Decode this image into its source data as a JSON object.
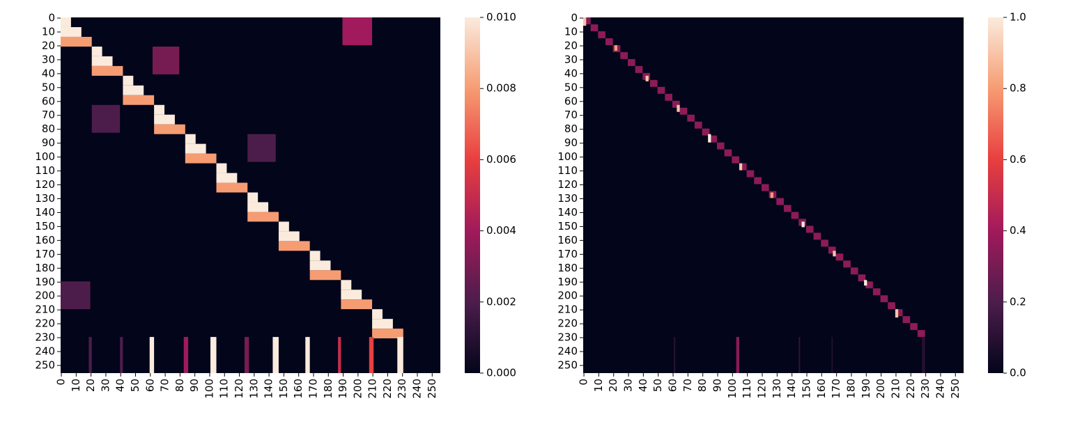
{
  "chart_data": [
    {
      "type": "heatmap",
      "y_inverted": true,
      "xlim": [
        0,
        256
      ],
      "ylim": [
        0,
        256
      ],
      "xticks": [
        0,
        10,
        20,
        30,
        40,
        50,
        60,
        70,
        80,
        90,
        100,
        110,
        120,
        130,
        140,
        150,
        160,
        170,
        180,
        190,
        200,
        210,
        220,
        230,
        240,
        250
      ],
      "yticks": [
        0,
        10,
        20,
        30,
        40,
        50,
        60,
        70,
        80,
        90,
        100,
        110,
        120,
        130,
        140,
        150,
        160,
        170,
        180,
        190,
        200,
        210,
        220,
        230,
        240,
        250
      ],
      "zlim": [
        0,
        0.01
      ],
      "zticks": [
        {
          "value": 0,
          "label": "0.000"
        },
        {
          "value": 0.002,
          "label": "0.002"
        },
        {
          "value": 0.004,
          "label": "0.004"
        },
        {
          "value": 0.006,
          "label": "0.006"
        },
        {
          "value": 0.008,
          "label": "0.008"
        },
        {
          "value": 0.01,
          "label": "0.010"
        }
      ],
      "cells": [
        [
          0,
          20,
          190,
          210,
          0.004
        ],
        [
          21,
          41,
          62,
          80,
          0.003
        ],
        [
          63,
          83,
          21,
          40,
          0.002
        ],
        [
          84,
          104,
          126,
          145,
          0.002
        ],
        [
          190,
          210,
          0,
          20,
          0.002
        ],
        [
          0,
          7,
          0,
          7,
          0.01
        ],
        [
          7,
          14,
          0,
          14,
          0.01
        ],
        [
          14,
          21,
          0,
          21,
          0.008
        ],
        [
          21,
          28,
          21,
          28,
          0.01
        ],
        [
          28,
          35,
          21,
          35,
          0.01
        ],
        [
          35,
          42,
          21,
          42,
          0.008
        ],
        [
          42,
          49,
          42,
          49,
          0.01
        ],
        [
          49,
          56,
          42,
          56,
          0.01
        ],
        [
          56,
          63,
          42,
          63,
          0.008
        ],
        [
          63,
          70,
          63,
          70,
          0.01
        ],
        [
          70,
          77,
          63,
          77,
          0.01
        ],
        [
          77,
          84,
          63,
          84,
          0.008
        ],
        [
          84,
          91,
          84,
          91,
          0.01
        ],
        [
          91,
          98,
          84,
          98,
          0.01
        ],
        [
          98,
          105,
          84,
          105,
          0.008
        ],
        [
          105,
          112,
          105,
          112,
          0.01
        ],
        [
          112,
          119,
          105,
          119,
          0.01
        ],
        [
          119,
          126,
          105,
          126,
          0.008
        ],
        [
          126,
          133,
          126,
          133,
          0.01
        ],
        [
          133,
          140,
          126,
          140,
          0.01
        ],
        [
          140,
          147,
          126,
          147,
          0.008
        ],
        [
          147,
          154,
          147,
          154,
          0.01
        ],
        [
          154,
          161,
          147,
          161,
          0.01
        ],
        [
          161,
          168,
          147,
          168,
          0.008
        ],
        [
          168,
          175,
          168,
          175,
          0.01
        ],
        [
          175,
          182,
          168,
          182,
          0.01
        ],
        [
          182,
          189,
          168,
          189,
          0.008
        ],
        [
          189,
          196,
          189,
          196,
          0.01
        ],
        [
          196,
          203,
          189,
          203,
          0.01
        ],
        [
          203,
          210,
          189,
          210,
          0.008
        ],
        [
          210,
          217,
          210,
          217,
          0.01
        ],
        [
          217,
          224,
          210,
          224,
          0.01
        ],
        [
          224,
          231,
          210,
          231,
          0.008
        ],
        [
          230,
          256,
          19,
          21,
          0.002
        ],
        [
          230,
          256,
          40,
          42,
          0.002
        ],
        [
          230,
          256,
          60,
          63,
          0.01
        ],
        [
          230,
          256,
          83,
          86,
          0.004
        ],
        [
          230,
          256,
          101,
          105,
          0.01
        ],
        [
          230,
          256,
          124,
          127,
          0.003
        ],
        [
          230,
          256,
          143,
          147,
          0.01
        ],
        [
          230,
          256,
          165,
          168,
          0.01
        ],
        [
          230,
          256,
          187,
          189,
          0.005
        ],
        [
          230,
          256,
          208,
          211,
          0.006
        ],
        [
          230,
          256,
          227,
          231,
          0.01
        ]
      ]
    },
    {
      "type": "heatmap",
      "y_inverted": true,
      "xlim": [
        0,
        256
      ],
      "ylim": [
        0,
        256
      ],
      "xticks": [
        0,
        10,
        20,
        30,
        40,
        50,
        60,
        70,
        80,
        90,
        100,
        110,
        120,
        130,
        140,
        150,
        160,
        170,
        180,
        190,
        200,
        210,
        220,
        230,
        240,
        250
      ],
      "yticks": [
        0,
        10,
        20,
        30,
        40,
        50,
        60,
        70,
        80,
        90,
        100,
        110,
        120,
        130,
        140,
        150,
        160,
        170,
        180,
        190,
        200,
        210,
        220,
        230,
        240,
        250
      ],
      "zlim": [
        0,
        1
      ],
      "zticks": [
        {
          "value": 0,
          "label": "0.0"
        },
        {
          "value": 0.2,
          "label": "0.2"
        },
        {
          "value": 0.4,
          "label": "0.4"
        },
        {
          "value": 0.6,
          "label": "0.6"
        },
        {
          "value": 0.8,
          "label": "0.8"
        },
        {
          "value": 1,
          "label": "1.0"
        }
      ],
      "cells": [
        [
          0,
          5,
          0,
          5,
          0.35
        ],
        [
          5,
          10,
          5,
          10,
          0.35
        ],
        [
          10,
          15,
          10,
          15,
          0.35
        ],
        [
          15,
          20,
          15,
          20,
          0.35
        ],
        [
          20,
          25,
          20,
          25,
          0.35
        ],
        [
          25,
          30,
          25,
          30,
          0.35
        ],
        [
          30,
          35,
          30,
          35,
          0.35
        ],
        [
          35,
          40,
          35,
          40,
          0.35
        ],
        [
          40,
          45,
          40,
          45,
          0.35
        ],
        [
          45,
          50,
          45,
          50,
          0.35
        ],
        [
          50,
          55,
          50,
          55,
          0.35
        ],
        [
          55,
          60,
          55,
          60,
          0.35
        ],
        [
          60,
          65,
          60,
          65,
          0.35
        ],
        [
          65,
          70,
          65,
          70,
          0.35
        ],
        [
          70,
          75,
          70,
          75,
          0.35
        ],
        [
          75,
          80,
          75,
          80,
          0.35
        ],
        [
          80,
          85,
          80,
          85,
          0.35
        ],
        [
          85,
          90,
          85,
          90,
          0.35
        ],
        [
          90,
          95,
          90,
          95,
          0.35
        ],
        [
          95,
          100,
          95,
          100,
          0.35
        ],
        [
          100,
          105,
          100,
          105,
          0.35
        ],
        [
          105,
          110,
          105,
          110,
          0.35
        ],
        [
          110,
          115,
          110,
          115,
          0.35
        ],
        [
          115,
          120,
          115,
          120,
          0.35
        ],
        [
          120,
          125,
          120,
          125,
          0.35
        ],
        [
          125,
          130,
          125,
          130,
          0.35
        ],
        [
          130,
          135,
          130,
          135,
          0.35
        ],
        [
          135,
          140,
          135,
          140,
          0.35
        ],
        [
          140,
          145,
          140,
          145,
          0.35
        ],
        [
          145,
          150,
          145,
          150,
          0.35
        ],
        [
          150,
          155,
          150,
          155,
          0.35
        ],
        [
          155,
          160,
          155,
          160,
          0.35
        ],
        [
          160,
          165,
          160,
          165,
          0.35
        ],
        [
          165,
          170,
          165,
          170,
          0.35
        ],
        [
          170,
          175,
          170,
          175,
          0.35
        ],
        [
          175,
          180,
          175,
          180,
          0.35
        ],
        [
          180,
          185,
          180,
          185,
          0.35
        ],
        [
          185,
          190,
          185,
          190,
          0.35
        ],
        [
          190,
          195,
          190,
          195,
          0.35
        ],
        [
          195,
          200,
          195,
          200,
          0.35
        ],
        [
          200,
          205,
          200,
          205,
          0.35
        ],
        [
          205,
          210,
          205,
          210,
          0.35
        ],
        [
          210,
          215,
          210,
          215,
          0.35
        ],
        [
          215,
          220,
          215,
          220,
          0.35
        ],
        [
          220,
          225,
          220,
          225,
          0.35
        ],
        [
          225,
          230,
          225,
          230,
          0.35
        ],
        [
          0,
          6,
          0,
          2,
          0.9
        ],
        [
          20,
          24,
          21,
          23,
          0.8
        ],
        [
          42,
          46,
          42,
          44,
          0.9
        ],
        [
          63,
          68,
          63,
          65,
          0.9
        ],
        [
          84,
          90,
          84,
          86,
          1.0
        ],
        [
          105,
          110,
          105,
          107,
          0.9
        ],
        [
          126,
          130,
          126,
          128,
          0.8
        ],
        [
          147,
          151,
          147,
          149,
          1.0
        ],
        [
          168,
          172,
          168,
          170,
          0.9
        ],
        [
          189,
          193,
          189,
          191,
          1.0
        ],
        [
          210,
          216,
          210,
          212,
          0.9
        ],
        [
          230,
          256,
          61,
          62,
          0.1
        ],
        [
          230,
          256,
          103,
          105,
          0.35
        ],
        [
          230,
          256,
          145,
          146,
          0.12
        ],
        [
          230,
          256,
          167,
          168,
          0.08
        ],
        [
          230,
          256,
          228,
          230,
          0.1
        ]
      ]
    }
  ]
}
